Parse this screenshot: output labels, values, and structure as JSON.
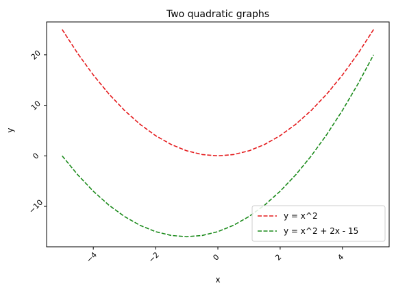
{
  "chart_data": {
    "type": "line",
    "title": "Two quadratic graphs",
    "xlabel": "x",
    "ylabel": "y",
    "xlim": [
      -5.5,
      5.5
    ],
    "ylim": [
      -18,
      26.5
    ],
    "xticks": [
      -4,
      -2,
      0,
      2,
      4
    ],
    "yticks": [
      -10,
      0,
      10,
      20
    ],
    "tick_rotation_deg": 45,
    "grid": false,
    "legend_position": "lower-right",
    "x": [
      -5,
      -4.5,
      -4,
      -3.5,
      -3,
      -2.5,
      -2,
      -1.5,
      -1,
      -0.5,
      0,
      0.5,
      1,
      1.5,
      2,
      2.5,
      3,
      3.5,
      4,
      4.5,
      5
    ],
    "series": [
      {
        "name": "y = x^2",
        "color": "#e41a1c",
        "linestyle": "dashed",
        "values": [
          25,
          20.25,
          16,
          12.25,
          9,
          6.25,
          4,
          2.25,
          1,
          0.25,
          0,
          0.25,
          1,
          2.25,
          4,
          6.25,
          9,
          12.25,
          16,
          20.25,
          25
        ]
      },
      {
        "name": "y = x^2 + 2x - 15",
        "color": "#1a8a1a",
        "linestyle": "dashed",
        "values": [
          0,
          -3.75,
          -7,
          -9.75,
          -12,
          -13.75,
          -15,
          -15.75,
          -16,
          -15.75,
          -15,
          -13.75,
          -12,
          -9.75,
          -7,
          -3.75,
          0,
          4.25,
          9,
          14.25,
          20
        ]
      }
    ]
  }
}
